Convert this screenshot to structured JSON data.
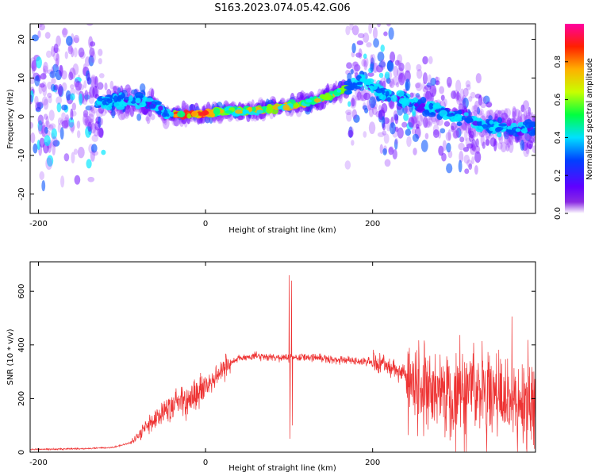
{
  "title": "S163.2023.074.05.42.G06",
  "chart_data": [
    {
      "type": "heatmap",
      "xlabel": "Height of straight line (km)",
      "ylabel": "Frequency (Hz)",
      "xlim": [
        -210,
        395
      ],
      "ylim": [
        -25,
        24
      ],
      "x_ticks": [
        -200,
        0,
        200
      ],
      "y_ticks": [
        -20,
        -10,
        0,
        10,
        20
      ],
      "colorbar": {
        "label": "Normalized spectral amplitude",
        "range": [
          0,
          1
        ],
        "ticks": [
          "0.0",
          "0.2",
          "0.4",
          "0.6",
          "0.8"
        ],
        "colors": [
          "#ffffff",
          "#7a00ff",
          "#0030ff",
          "#00e0ff",
          "#00ff40",
          "#c8ff00",
          "#ffb000",
          "#ff2000",
          "#ff00a0"
        ]
      },
      "ridge": {
        "x": [
          -125,
          -100,
          -75,
          -60,
          -50,
          -30,
          0,
          30,
          60,
          90,
          120,
          150,
          175,
          190,
          210,
          240,
          270,
          300,
          330,
          360,
          395
        ],
        "frequency_hz": [
          4,
          4,
          4,
          3,
          0.5,
          0.5,
          0.8,
          1.5,
          1.5,
          2.5,
          3.5,
          5.5,
          8,
          10,
          6,
          4,
          2,
          0,
          -2,
          -3,
          -3
        ]
      }
    },
    {
      "type": "line",
      "xlabel": "Height of straight line (km)",
      "ylabel": "SNR (10 * v/v)",
      "xlim": [
        -210,
        395
      ],
      "ylim": [
        0,
        710
      ],
      "x_ticks": [
        -200,
        0,
        200
      ],
      "y_ticks": [
        0,
        200,
        400,
        600
      ],
      "color": "#ee3333",
      "envelope": {
        "x": [
          -210,
          -170,
          -140,
          -110,
          -90,
          -80,
          -70,
          -60,
          -50,
          -40,
          -30,
          -20,
          -10,
          0,
          10,
          20,
          30,
          40,
          60,
          80,
          100,
          120,
          140,
          160,
          180,
          200,
          220,
          235,
          250,
          270,
          300,
          330,
          360,
          395
        ],
        "snr": [
          10,
          12,
          14,
          18,
          35,
          60,
          100,
          130,
          150,
          170,
          190,
          200,
          215,
          240,
          270,
          300,
          330,
          350,
          360,
          355,
          350,
          355,
          350,
          345,
          340,
          335,
          320,
          300,
          250,
          240,
          230,
          220,
          215,
          210
        ]
      },
      "spikes": [
        {
          "x": 100,
          "snr": 660
        },
        {
          "x": 101,
          "snr": 50
        },
        {
          "x": 103,
          "snr": 640
        },
        {
          "x": 104,
          "snr": 100
        }
      ]
    }
  ]
}
